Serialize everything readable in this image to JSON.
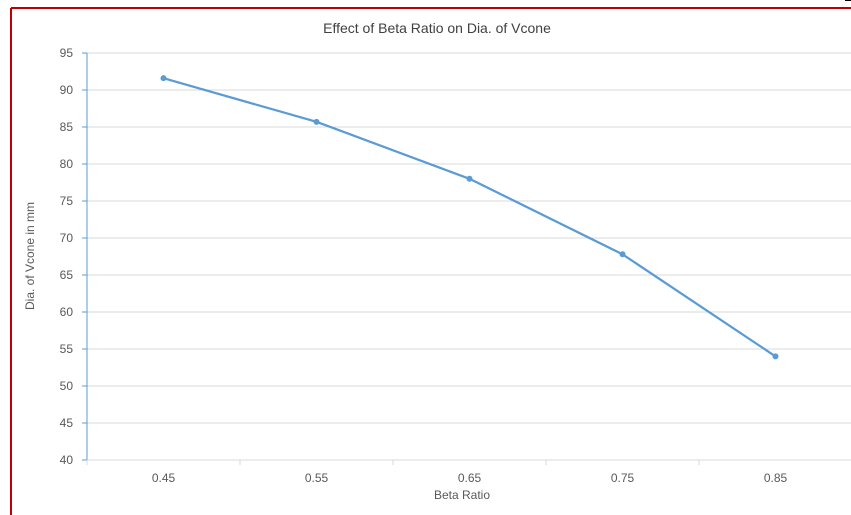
{
  "chart_data": {
    "type": "line",
    "title": "Effect of Beta Ratio on Dia. of Vcone",
    "xlabel": "Beta Ratio",
    "ylabel": "Dia. of Vcone in mm",
    "categories": [
      "0.45",
      "0.55",
      "0.65",
      "0.75",
      "0.85"
    ],
    "series": [
      {
        "values": [
          91.6,
          85.7,
          78.0,
          67.8,
          54.0
        ]
      }
    ],
    "ylim": [
      40,
      95
    ],
    "yticks": [
      "95",
      "90",
      "85",
      "80",
      "75",
      "70",
      "65",
      "60",
      "55",
      "50",
      "45",
      "40"
    ],
    "grid": "horizontal",
    "line_color": "#5b9bd5",
    "grid_color": "#d9d9d9",
    "border_color": "#c00000"
  }
}
